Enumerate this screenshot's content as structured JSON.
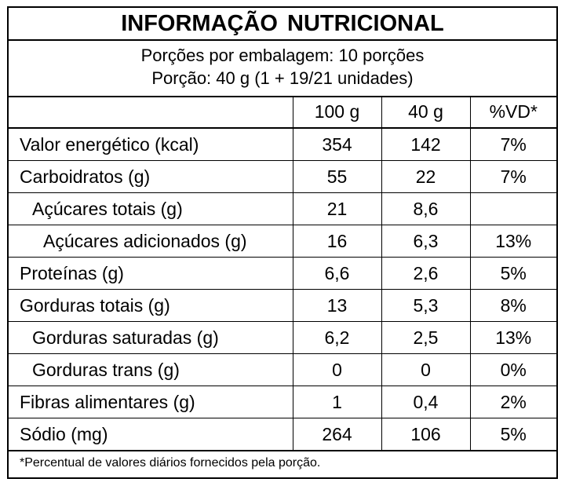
{
  "title": "INFORMAÇÃO NUTRICIONAL",
  "servings": {
    "per_package": "Porções por embalagem: 10 porções",
    "portion": "Porção: 40 g (1 + 19/21 unidades)"
  },
  "columns": [
    "",
    "100 g",
    "40 g",
    "%VD*"
  ],
  "rows": [
    {
      "name": "Valor energético (kcal)",
      "indent": 0,
      "v100": "354",
      "v40": "142",
      "vd": "7%"
    },
    {
      "name": "Carboidratos (g)",
      "indent": 0,
      "v100": "55",
      "v40": "22",
      "vd": "7%"
    },
    {
      "name": "Açúcares totais (g)",
      "indent": 1,
      "v100": "21",
      "v40": "8,6",
      "vd": ""
    },
    {
      "name": "Açúcares adicionados (g)",
      "indent": 2,
      "v100": "16",
      "v40": "6,3",
      "vd": "13%"
    },
    {
      "name": "Proteínas (g)",
      "indent": 0,
      "v100": "6,6",
      "v40": "2,6",
      "vd": "5%"
    },
    {
      "name": "Gorduras totais (g)",
      "indent": 0,
      "v100": "13",
      "v40": "5,3",
      "vd": "8%"
    },
    {
      "name": "Gorduras saturadas (g)",
      "indent": 1,
      "v100": "6,2",
      "v40": "2,5",
      "vd": "13%"
    },
    {
      "name": "Gorduras trans (g)",
      "indent": 1,
      "v100": "0",
      "v40": "0",
      "vd": "0%"
    },
    {
      "name": "Fibras alimentares (g)",
      "indent": 0,
      "v100": "1",
      "v40": "0,4",
      "vd": "2%"
    },
    {
      "name": "Sódio (mg)",
      "indent": 0,
      "v100": "264",
      "v40": "106",
      "vd": "5%"
    }
  ],
  "footnote": "*Percentual de valores diários fornecidos pela porção."
}
